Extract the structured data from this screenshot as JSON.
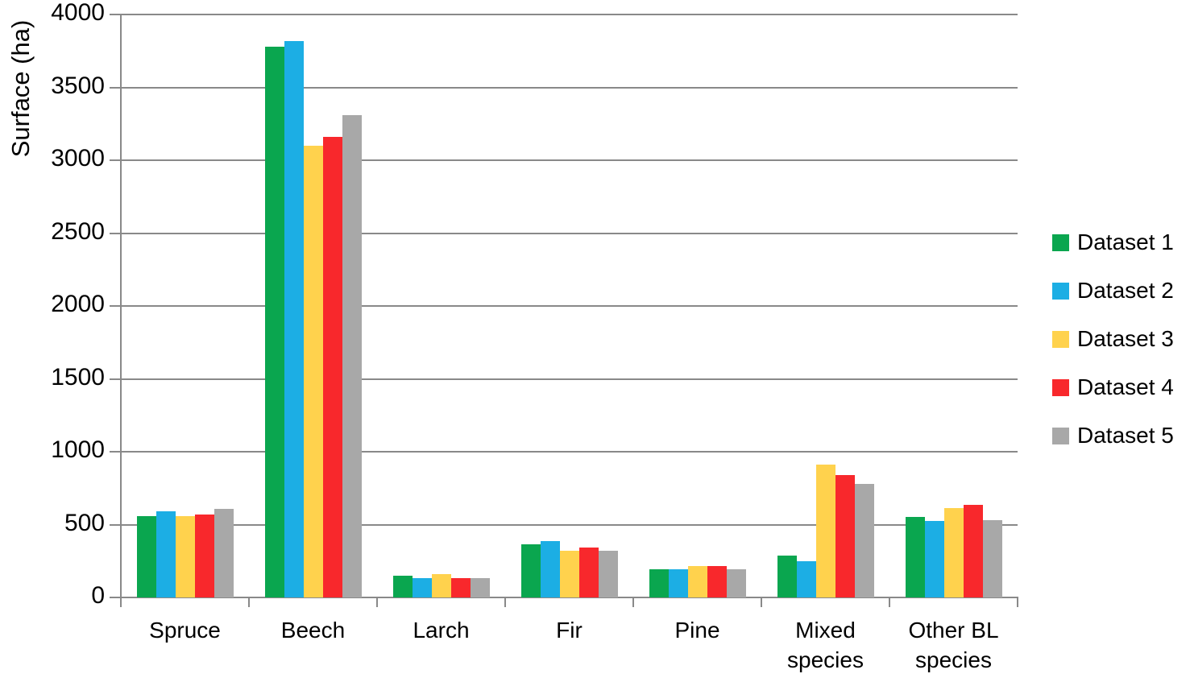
{
  "figure": {
    "background": "#ffffff",
    "text_color": "#000000",
    "grid_color": "#898989"
  },
  "chart_data": {
    "type": "bar",
    "title": "",
    "xlabel": "",
    "ylabel": "Surface (ha)",
    "ylim": [
      0,
      4000
    ],
    "ytick_step": 500,
    "ytick_labels": [
      "0",
      "500",
      "1000",
      "1500",
      "2000",
      "2500",
      "3000",
      "3500",
      "4000"
    ],
    "grid": "horizontal",
    "legend_position": "right",
    "categories": [
      "Spruce",
      "Beech",
      "Larch",
      "Fir",
      "Pine",
      "Mixed species",
      "Other BL species"
    ],
    "series": [
      {
        "name": "Dataset 1",
        "color": "#0AA64F",
        "values": [
          560,
          3780,
          150,
          365,
          195,
          285,
          550
        ]
      },
      {
        "name": "Dataset 2",
        "color": "#1CAEE4",
        "values": [
          590,
          3820,
          130,
          385,
          195,
          250,
          525
        ]
      },
      {
        "name": "Dataset 3",
        "color": "#FFD24D",
        "values": [
          560,
          3100,
          160,
          320,
          215,
          910,
          615
        ]
      },
      {
        "name": "Dataset 4",
        "color": "#F8282C",
        "values": [
          570,
          3160,
          130,
          340,
          215,
          840,
          635
        ]
      },
      {
        "name": "Dataset 5",
        "color": "#A8A8A8",
        "values": [
          610,
          3310,
          130,
          320,
          195,
          780,
          530
        ]
      }
    ]
  }
}
